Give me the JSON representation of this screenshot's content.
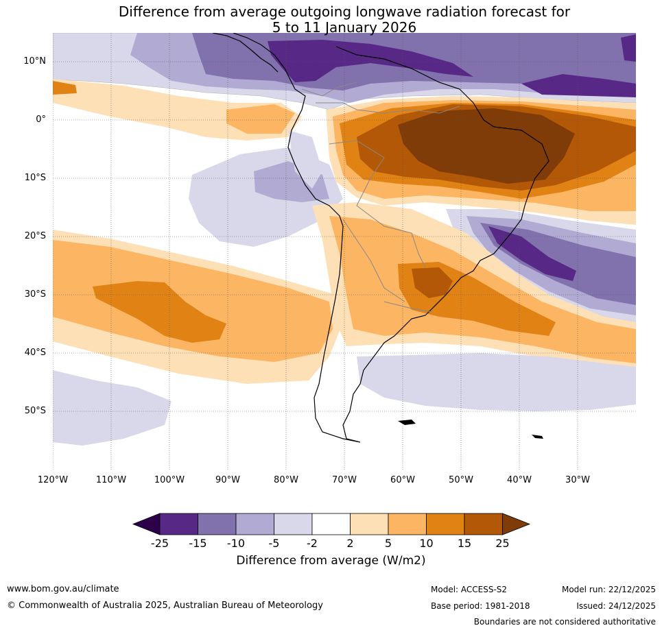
{
  "title": {
    "line1": "Difference from average outgoing longwave radiation forecast for",
    "line2": "5 to 11 January 2026"
  },
  "map": {
    "lat_labels": [
      "10°N",
      "0°",
      "10°S",
      "20°S",
      "30°S",
      "40°S",
      "50°S"
    ],
    "lon_labels": [
      "120°W",
      "110°W",
      "100°W",
      "90°W",
      "80°W",
      "70°W",
      "60°W",
      "50°W",
      "40°W",
      "30°W"
    ]
  },
  "colorbar": {
    "ticks": [
      "-25",
      "-15",
      "-10",
      "-5",
      "-2",
      "2",
      "5",
      "10",
      "15",
      "25"
    ],
    "colors": [
      "#582886",
      "#8172ae",
      "#b1aad2",
      "#d9d8ea",
      "#ffffff",
      "#fee0b6",
      "#fbb563",
      "#e08214",
      "#b35806"
    ],
    "under_color": "#2d004b",
    "over_color": "#7f3b08",
    "label": "Difference from average (W/m2)"
  },
  "footer": {
    "website": "www.bom.gov.au/climate",
    "copyright": "© Commonwealth of Australia 2025, Australian Bureau of Meteorology",
    "model": "Model: ACCESS-S2",
    "base_period": "Base period: 1981-2018",
    "model_run": "Model run: 22/12/2025",
    "issued": "Issued: 24/12/2025",
    "boundaries_note": "Boundaries are not considered authoritative"
  }
}
